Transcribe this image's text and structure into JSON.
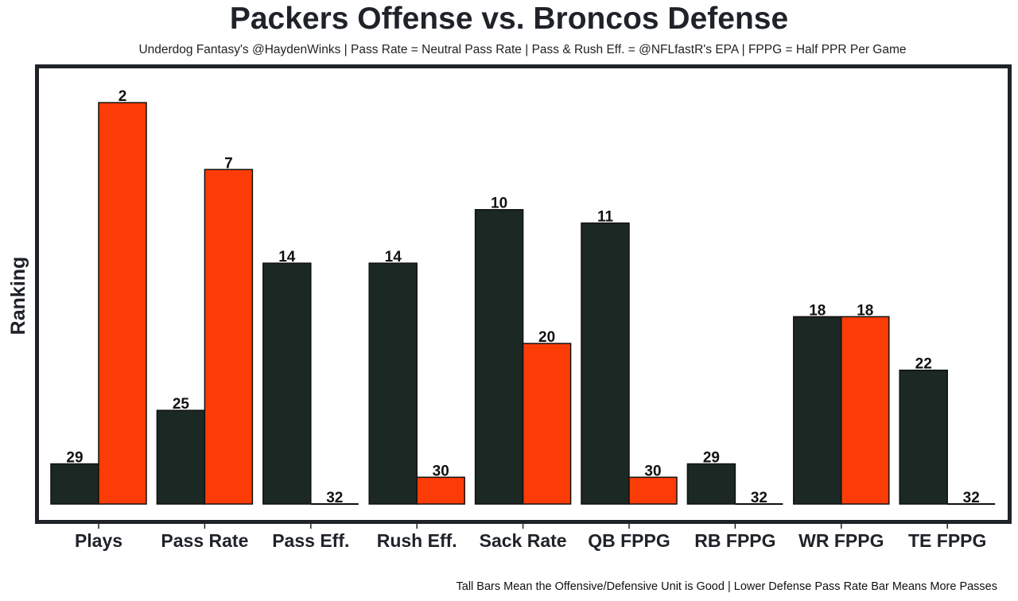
{
  "chart_data": {
    "type": "bar",
    "title": "Packers Offense vs. Broncos Defense",
    "subtitle": "Underdog Fantasy's @HaydenWinks | Pass Rate = Neutral Pass Rate | Pass & Rush Eff. = @NFLfastR's EPA | FPPG = Half PPR Per Game",
    "caption": "Tall Bars Mean the Offensive/Defensive Unit is Good | Lower Defense Pass Rate Bar Means More Passes",
    "xlabel": "",
    "ylabel": "Ranking",
    "categories": [
      "Plays",
      "Pass Rate",
      "Pass Eff.",
      "Rush Eff.",
      "Sack Rate",
      "QB FPPG",
      "RB FPPG",
      "WR FPPG",
      "TE FPPG"
    ],
    "series": [
      {
        "name": "Packers Offense",
        "color": "#1c2823",
        "values": [
          29,
          25,
          14,
          14,
          10,
          11,
          29,
          18,
          22
        ]
      },
      {
        "name": "Broncos Defense",
        "color": "#fb3c06",
        "values": [
          2,
          7,
          32,
          30,
          20,
          30,
          32,
          18,
          32
        ]
      }
    ],
    "value_note": "Bar height = 32 minus ranking (rank 1 tallest, rank 32 flat)",
    "ylim": [
      0,
      32
    ],
    "grid": false,
    "legend": "none"
  }
}
